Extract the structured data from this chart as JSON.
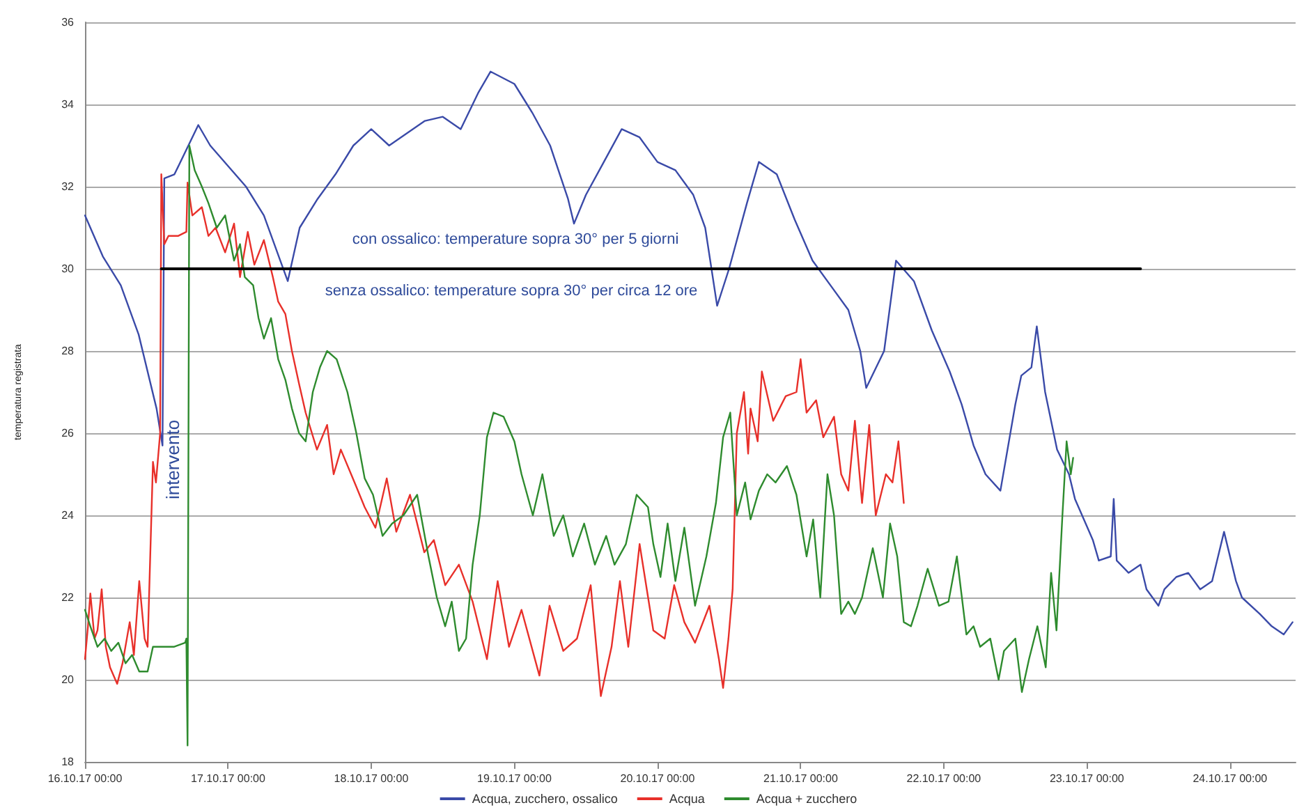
{
  "chart_data": {
    "type": "line",
    "ylabel": "temperatura registrata",
    "xlim": [
      "--10-16T00:00",
      "--10-24T11:00"
    ],
    "ylim": [
      18,
      36
    ],
    "yticks": [
      18,
      20,
      22,
      24,
      26,
      28,
      30,
      32,
      34,
      36
    ],
    "xticks": [
      {
        "value": "--10-16T00:00",
        "label": "16.10.17 00:00"
      },
      {
        "value": "--10-17T00:00",
        "label": "17.10.17 00:00"
      },
      {
        "value": "--10-18T00:00",
        "label": "18.10.17 00:00"
      },
      {
        "value": "--10-19T00:00",
        "label": "19.10.17 00:00"
      },
      {
        "value": "--10-20T00:00",
        "label": "20.10.17 00:00"
      },
      {
        "value": "--10-21T00:00",
        "label": "21.10.17 00:00"
      },
      {
        "value": "--10-22T00:00",
        "label": "22.10.17 00:00"
      },
      {
        "value": "--10-23T00:00",
        "label": "23.10.17 00:00"
      },
      {
        "value": "--10-24T00:00",
        "label": "24.10.17 00:00"
      }
    ],
    "grid": "y",
    "legend": "bottom",
    "marker": "none",
    "line_style": "solid",
    "annotations": [
      "con ossalico: temperature sopra 30° per 5 giorni",
      "senza ossalico: temperature sopra 30° per circa 12 ore",
      "intervento"
    ],
    "series": [
      {
        "name": "Acqua, zucchero, ossalico",
        "color": "#3a4aa8",
        "x": [
          "--10-16T00:00",
          "--10-16T03:00",
          "--10-16T06:00",
          "--10-16T09:00",
          "--10-16T12:00",
          "--10-16T13:00",
          "--10-16T13:18",
          "--10-16T15:00",
          "--10-16T18:00",
          "--10-16T19:00",
          "--10-16T21:00",
          "--10-17T00:00",
          "--10-17T03:00",
          "--10-17T06:00",
          "--10-17T09:00",
          "--10-17T10:00",
          "--10-17T12:00",
          "--10-17T15:00",
          "--10-17T18:00",
          "--10-17T21:00",
          "--10-18T00:00",
          "--10-18T03:00",
          "--10-18T06:00",
          "--10-18T09:00",
          "--10-18T12:00",
          "--10-18T15:00",
          "--10-18T18:00",
          "--10-18T20:00",
          "--10-19T00:00",
          "--10-19T03:00",
          "--10-19T06:00",
          "--10-19T09:00",
          "--10-19T10:00",
          "--10-19T12:00",
          "--10-19T15:00",
          "--10-19T18:00",
          "--10-19T21:00",
          "--10-20T00:00",
          "--10-20T03:00",
          "--10-20T06:00",
          "--10-20T08:00",
          "--10-20T10:00",
          "--10-20T12:00",
          "--10-20T15:00",
          "--10-20T17:00",
          "--10-20T20:00",
          "--10-20T23:00",
          "--10-21T02:00",
          "--10-21T05:00",
          "--10-21T08:00",
          "--10-21T10:00",
          "--10-21T11:00",
          "--10-21T14:00",
          "--10-21T16:00",
          "--10-21T19:00",
          "--10-21T22:00",
          "--10-22T01:00",
          "--10-22T03:00",
          "--10-22T05:00",
          "--10-22T07:00",
          "--10-22T09:30",
          "--10-22T12:00",
          "--10-22T13:00",
          "--10-22T14:42",
          "--10-22T15:36",
          "--10-22T17:00",
          "--10-22T19:00",
          "--10-22T21:00",
          "--10-22T22:00",
          "--10-23T01:00",
          "--10-23T02:00",
          "--10-23T04:00",
          "--10-23T04:30",
          "--10-23T05:00",
          "--10-23T07:00",
          "--10-23T09:00",
          "--10-23T10:00",
          "--10-23T12:00",
          "--10-23T13:00",
          "--10-23T15:00",
          "--10-23T17:00",
          "--10-23T19:00",
          "--10-23T21:00",
          "--10-23T22:00",
          "--10-23T23:00",
          "--10-24T01:00",
          "--10-24T02:00",
          "--10-24T05:00",
          "--10-24T07:00",
          "--10-24T09:00",
          "--10-24T10:30"
        ],
        "values": [
          31.3,
          30.3,
          29.6,
          28.4,
          26.6,
          25.7,
          32.2,
          32.3,
          33.2,
          33.5,
          33.0,
          32.5,
          32.0,
          31.3,
          30.1,
          29.7,
          31.0,
          31.7,
          32.3,
          33.0,
          33.4,
          33.0,
          33.3,
          33.6,
          33.7,
          33.4,
          34.3,
          34.8,
          34.5,
          33.8,
          33.0,
          31.7,
          31.1,
          31.8,
          32.6,
          33.4,
          33.2,
          32.6,
          32.4,
          31.8,
          31.0,
          29.1,
          30.0,
          31.6,
          32.6,
          32.3,
          31.2,
          30.2,
          29.6,
          29.0,
          28.0,
          27.1,
          28.0,
          30.2,
          29.7,
          28.5,
          27.5,
          26.7,
          25.7,
          25.0,
          24.6,
          26.7,
          27.4,
          27.6,
          28.6,
          27.0,
          25.6,
          25.0,
          24.4,
          23.4,
          22.9,
          23.0,
          24.4,
          22.9,
          22.6,
          22.8,
          22.2,
          21.8,
          22.2,
          22.5,
          22.6,
          22.2,
          22.4,
          23.0,
          23.6,
          22.4,
          22.0,
          21.6,
          21.3,
          21.1,
          21.4
        ]
      },
      {
        "name": "Acqua",
        "color": "#e8302a",
        "x": [
          "--10-16T00:00",
          "--10-16T00:30",
          "--10-16T00:54",
          "--10-16T01:36",
          "--10-16T02:06",
          "--10-16T02:48",
          "--10-16T03:30",
          "--10-16T04:12",
          "--10-16T05:24",
          "--10-16T06:18",
          "--10-16T07:30",
          "--10-16T08:12",
          "--10-16T09:06",
          "--10-16T10:00",
          "--10-16T10:30",
          "--10-16T11:24",
          "--10-16T11:54",
          "--10-16T12:36",
          "--10-16T12:48",
          "--10-16T13:18",
          "--10-16T14:00",
          "--10-16T15:36",
          "--10-16T17:00",
          "--10-16T17:12",
          "--10-16T18:00",
          "--10-16T19:36",
          "--10-16T20:42",
          "--10-16T21:54",
          "--10-16T23:30",
          "--10-17T01:00",
          "--10-17T02:00",
          "--10-17T03:18",
          "--10-17T04:24",
          "--10-17T06:00",
          "--10-17T07:30",
          "--10-17T08:24",
          "--10-17T09:36",
          "--10-17T10:42",
          "--10-17T11:54",
          "--10-17T13:00",
          "--10-17T14:54",
          "--10-17T16:36",
          "--10-17T17:42",
          "--10-17T18:54",
          "--10-17T21:12",
          "--10-17T22:54",
          "--10-18T00:42",
          "--10-18T02:36",
          "--10-18T04:12",
          "--10-18T06:30",
          "--10-18T08:54",
          "--10-18T10:30",
          "--10-18T12:24",
          "--10-18T14:42",
          "--10-18T17:00",
          "--10-18T19:24",
          "--10-18T21:12",
          "--10-18T23:06",
          "--10-19T01:12",
          "--10-19T04:12",
          "--10-19T05:54",
          "--10-19T08:12",
          "--10-19T10:30",
          "--10-19T12:48",
          "--10-19T14:30",
          "--10-19T16:18",
          "--10-19T17:42",
          "--10-19T19:06",
          "--10-19T21:00",
          "--10-19T23:18",
          "--10-20T01:12",
          "--10-20T02:48",
          "--10-20T04:30",
          "--10-20T06:18",
          "--10-20T08:42",
          "--10-20T10:18",
          "--10-20T11:00",
          "--10-20T11:54",
          "--10-20T12:36",
          "--10-20T13:18",
          "--10-20T14:30",
          "--10-20T15:12",
          "--10-20T15:36",
          "--10-20T16:48",
          "--10-20T17:30",
          "--10-20T19:24",
          "--10-20T21:30",
          "--10-20T23:18",
          "--10-21T00:00",
          "--10-21T01:00",
          "--10-21T02:36",
          "--10-21T03:48",
          "--10-21T05:36",
          "--10-21T06:48",
          "--10-21T08:00",
          "--10-21T09:06",
          "--10-21T10:18",
          "--10-21T11:30",
          "--10-21T12:36",
          "--10-21T14:18",
          "--10-21T15:24",
          "--10-21T16:24",
          "--10-21T17:18"
        ],
        "values": [
          20.5,
          21.3,
          22.1,
          21.0,
          21.2,
          22.2,
          20.8,
          20.3,
          19.9,
          20.4,
          21.4,
          20.6,
          22.4,
          21.0,
          20.8,
          25.3,
          24.8,
          26.0,
          32.3,
          30.6,
          30.8,
          30.8,
          30.9,
          32.1,
          31.3,
          31.5,
          30.8,
          31.0,
          30.4,
          31.1,
          29.8,
          30.9,
          30.1,
          30.7,
          29.8,
          29.2,
          28.9,
          28.0,
          27.2,
          26.5,
          25.6,
          26.2,
          25.0,
          25.6,
          24.8,
          24.2,
          23.7,
          24.9,
          23.6,
          24.5,
          23.1,
          23.4,
          22.3,
          22.8,
          21.9,
          20.5,
          22.4,
          20.8,
          21.7,
          20.1,
          21.8,
          20.7,
          21.0,
          22.3,
          19.6,
          20.8,
          22.4,
          20.8,
          23.3,
          21.2,
          21.0,
          22.3,
          21.4,
          20.9,
          21.8,
          20.5,
          19.8,
          21.0,
          22.2,
          26.0,
          27.0,
          25.5,
          26.6,
          25.8,
          27.5,
          26.3,
          26.9,
          27.0,
          27.8,
          26.5,
          26.8,
          25.9,
          26.4,
          25.0,
          24.6,
          26.3,
          24.3,
          26.2,
          24.0,
          25.0,
          24.8,
          25.8,
          24.3
        ]
      },
      {
        "name": "Acqua + zucchero",
        "color": "#2e8b2e",
        "x": [
          "--10-16T00:00",
          "--10-16T00:54",
          "--10-16T02:06",
          "--10-16T03:18",
          "--10-16T04:24",
          "--10-16T05:36",
          "--10-16T06:48",
          "--10-16T07:54",
          "--10-16T09:06",
          "--10-16T10:30",
          "--10-16T11:24",
          "--10-16T14:54",
          "--10-16T16:48",
          "--10-16T17:00",
          "--10-16T17:12",
          "--10-16T17:30",
          "--10-16T18:24",
          "--10-16T19:36",
          "--10-16T20:42",
          "--10-16T22:06",
          "--10-16T23:30",
          "--10-17T01:00",
          "--10-17T02:00",
          "--10-17T02:48",
          "--10-17T04:12",
          "--10-17T05:06",
          "--10-17T06:00",
          "--10-17T07:12",
          "--10-17T08:24",
          "--10-17T09:36",
          "--10-17T10:42",
          "--10-17T11:54",
          "--10-17T13:00",
          "--10-17T14:12",
          "--10-17T15:24",
          "--10-17T16:36",
          "--10-17T18:12",
          "--10-17T20:00",
          "--10-17T21:30",
          "--10-17T22:54",
          "--10-18T00:18",
          "--10-18T01:54",
          "--10-18T03:30",
          "--10-18T05:24",
          "--10-18T07:42",
          "--10-18T09:36",
          "--10-18T11:00",
          "--10-18T12:24",
          "--10-18T13:30",
          "--10-18T14:42",
          "--10-18T15:54",
          "--10-18T17:00",
          "--10-18T18:12",
          "--10-18T19:24",
          "--10-18T20:30",
          "--10-18T22:12",
          "--10-19T00:00",
          "--10-19T01:12",
          "--10-19T03:06",
          "--10-19T04:42",
          "--10-19T06:36",
          "--10-19T08:12",
          "--10-19T09:48",
          "--10-19T11:42",
          "--10-19T13:30",
          "--10-19T15:24",
          "--10-19T16:48",
          "--10-19T18:42",
          "--10-19T20:30",
          "--10-19T22:24",
          "--10-19T23:18",
          "--10-20T00:30",
          "--10-20T01:42",
          "--10-20T03:00",
          "--10-20T04:30",
          "--10-20T06:18",
          "--10-20T08:12",
          "--10-20T09:48",
          "--10-20T11:00",
          "--10-20T12:12",
          "--10-20T13:18",
          "--10-20T14:42",
          "--10-20T15:36",
          "--10-20T17:00",
          "--10-20T18:24",
          "--10-20T19:48",
          "--10-20T21:42",
          "--10-20T23:18",
          "--10-21T01:00",
          "--10-21T02:06",
          "--10-21T03:18",
          "--10-21T04:30",
          "--10-21T05:36",
          "--10-21T06:48",
          "--10-21T08:00",
          "--10-21T09:06",
          "--10-21T10:18",
          "--10-21T12:06",
          "--10-21T13:48",
          "--10-21T15:00",
          "--10-21T16:12",
          "--10-21T17:18",
          "--10-21T18:30",
          "--10-21T19:36",
          "--10-21T21:18",
          "--10-21T23:12",
          "--10-22T00:48",
          "--10-22T02:12",
          "--10-22T03:48",
          "--10-22T05:00",
          "--10-22T06:06",
          "--10-22T07:48",
          "--10-22T09:12",
          "--10-22T10:06",
          "--10-22T12:00",
          "--10-22T13:06",
          "--10-22T14:18",
          "--10-22T15:42",
          "--10-22T17:06",
          "--10-22T18:00",
          "--10-22T18:54",
          "--10-22T19:54",
          "--10-22T20:36",
          "--10-22T21:18",
          "--10-22T21:42"
        ],
        "values": [
          21.7,
          21.3,
          20.8,
          21.0,
          20.7,
          20.9,
          20.4,
          20.6,
          20.2,
          20.2,
          20.8,
          20.8,
          20.9,
          21.0,
          18.4,
          33.0,
          32.4,
          32.0,
          31.6,
          31.0,
          31.3,
          30.2,
          30.6,
          29.8,
          29.6,
          28.8,
          28.3,
          28.8,
          27.8,
          27.3,
          26.6,
          26.0,
          25.8,
          27.0,
          27.6,
          28.0,
          27.8,
          27.0,
          26.0,
          24.9,
          24.5,
          23.5,
          23.8,
          24.0,
          24.5,
          23.0,
          22.0,
          21.3,
          21.9,
          20.7,
          21.0,
          22.8,
          24.0,
          25.9,
          26.5,
          26.4,
          25.8,
          25.0,
          24.0,
          25.0,
          23.5,
          24.0,
          23.0,
          23.8,
          22.8,
          23.5,
          22.8,
          23.3,
          24.5,
          24.2,
          23.3,
          22.5,
          23.8,
          22.4,
          23.7,
          21.8,
          23.0,
          24.3,
          25.9,
          26.5,
          24.0,
          24.8,
          23.9,
          24.6,
          25.0,
          24.8,
          25.2,
          24.5,
          23.0,
          23.9,
          22.0,
          25.0,
          24.0,
          21.6,
          21.9,
          21.6,
          22.0,
          23.2,
          22.0,
          23.8,
          23.0,
          21.4,
          21.3,
          21.8,
          22.7,
          21.8,
          21.9,
          23.0,
          21.1,
          21.3,
          20.8,
          21.0,
          20.0,
          20.7,
          21.0,
          19.7,
          20.5,
          21.3,
          20.3,
          22.6,
          21.2,
          24.0,
          25.8,
          25.0,
          25.4
        ]
      },
      {
        "color": "#000000",
        "x": [
          "--10-16T12:48",
          "--10-23T09:00"
        ],
        "values": [
          30,
          30
        ]
      }
    ]
  }
}
